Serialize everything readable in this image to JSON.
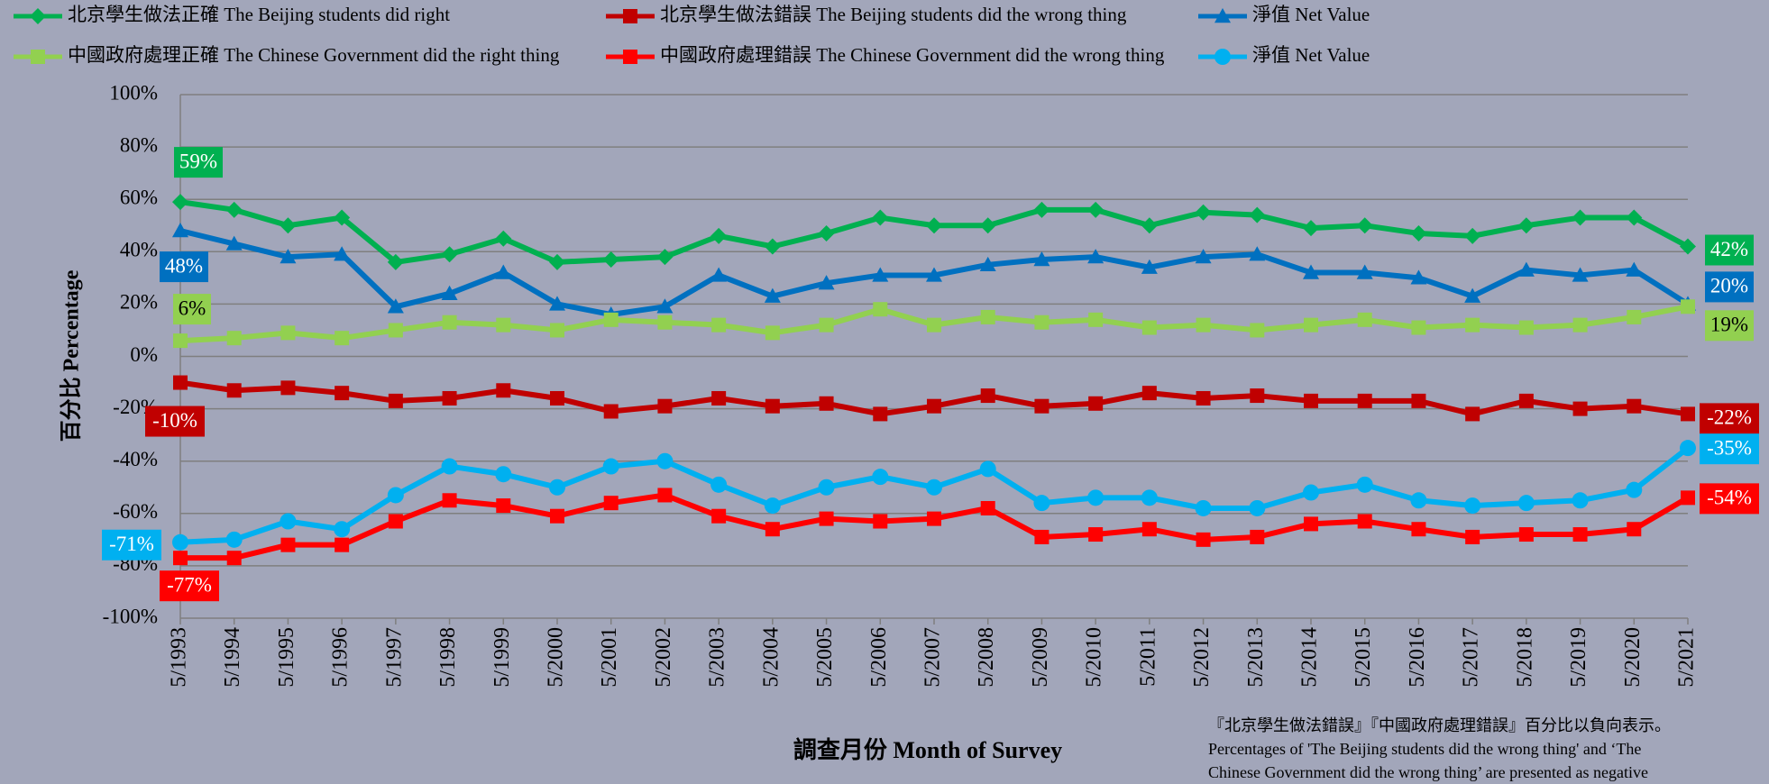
{
  "chart_data": {
    "type": "line",
    "x_label": "調查月份 Month of Survey",
    "y_label": "百分比 Percentage",
    "categories": [
      "5/1993",
      "5/1994",
      "5/1995",
      "5/1996",
      "5/1997",
      "5/1998",
      "5/1999",
      "5/2000",
      "5/2001",
      "5/2002",
      "5/2003",
      "5/2004",
      "5/2005",
      "5/2006",
      "5/2007",
      "5/2008",
      "5/2009",
      "5/2010",
      "5/2011",
      "5/2012",
      "5/2013",
      "5/2014",
      "5/2015",
      "5/2016",
      "5/2017",
      "5/2018",
      "5/2019",
      "5/2020",
      "5/2021"
    ],
    "ylim": [
      -100,
      100
    ],
    "yticks": [
      {
        "value": -100,
        "label": "-100%"
      },
      {
        "value": -80,
        "label": "-80%"
      },
      {
        "value": -60,
        "label": "-60%"
      },
      {
        "value": -40,
        "label": "-40%"
      },
      {
        "value": -20,
        "label": "-20%"
      },
      {
        "value": 0,
        "label": "0%"
      },
      {
        "value": 20,
        "label": "20%"
      },
      {
        "value": 40,
        "label": "40%"
      },
      {
        "value": 60,
        "label": "60%"
      },
      {
        "value": 80,
        "label": "80%"
      },
      {
        "value": 100,
        "label": "100%"
      }
    ],
    "grid": true,
    "series": [
      {
        "name": "北京學生做法正確 The Beijing students did right",
        "color": "#00b050",
        "marker": "diamond",
        "values": [
          59,
          56,
          50,
          53,
          36,
          39,
          45,
          36,
          37,
          38,
          46,
          42,
          47,
          53,
          50,
          50,
          56,
          56,
          50,
          55,
          54,
          49,
          50,
          47,
          46,
          50,
          53,
          53,
          42
        ],
        "value_labels": [
          "59%",
          null,
          null,
          null,
          null,
          null,
          null,
          null,
          null,
          null,
          null,
          null,
          null,
          null,
          null,
          null,
          null,
          null,
          null,
          null,
          null,
          null,
          null,
          null,
          null,
          null,
          null,
          null,
          "42%"
        ]
      },
      {
        "name": "北京學生做法錯誤 The Beijing students did the wrong thing",
        "color": "#c00000",
        "marker": "square",
        "values": [
          -10,
          -13,
          -12,
          -14,
          -17,
          -16,
          -13,
          -16,
          -21,
          -19,
          -16,
          -19,
          -18,
          -22,
          -19,
          -15,
          -19,
          -18,
          -14,
          -16,
          -15,
          -17,
          -17,
          -17,
          -22,
          -17,
          -20,
          -19,
          -22
        ],
        "value_labels": [
          "-10%",
          null,
          null,
          null,
          null,
          null,
          null,
          null,
          null,
          null,
          null,
          null,
          null,
          null,
          null,
          null,
          null,
          null,
          null,
          null,
          null,
          null,
          null,
          null,
          null,
          null,
          null,
          null,
          "-22%"
        ]
      },
      {
        "name": "淨值 Net Value",
        "color": "#0070c0",
        "marker": "triangle",
        "values": [
          48,
          43,
          38,
          39,
          19,
          24,
          32,
          20,
          16,
          19,
          31,
          23,
          28,
          31,
          31,
          35,
          37,
          38,
          34,
          38,
          39,
          32,
          32,
          30,
          23,
          33,
          31,
          33,
          20
        ],
        "value_labels": [
          "48%",
          null,
          null,
          null,
          null,
          null,
          null,
          null,
          null,
          null,
          null,
          null,
          null,
          null,
          null,
          null,
          null,
          null,
          null,
          null,
          null,
          null,
          null,
          null,
          null,
          null,
          null,
          null,
          "20%"
        ]
      },
      {
        "name": "中國政府處理正確 The Chinese Government did the right thing",
        "color": "#92d050",
        "marker": "square",
        "values": [
          6,
          7,
          9,
          7,
          10,
          13,
          12,
          10,
          14,
          13,
          12,
          9,
          12,
          18,
          12,
          15,
          13,
          14,
          11,
          12,
          10,
          12,
          14,
          11,
          12,
          11,
          12,
          15,
          19
        ],
        "value_labels": [
          "6%",
          null,
          null,
          null,
          null,
          null,
          null,
          null,
          null,
          null,
          null,
          null,
          null,
          null,
          null,
          null,
          null,
          null,
          null,
          null,
          null,
          null,
          null,
          null,
          null,
          null,
          null,
          null,
          "19%"
        ]
      },
      {
        "name": "中國政府處理錯誤 The Chinese Government did the wrong thing",
        "color": "#ff0000",
        "marker": "square",
        "values": [
          -77,
          -77,
          -72,
          -72,
          -63,
          -55,
          -57,
          -61,
          -56,
          -53,
          -61,
          -66,
          -62,
          -63,
          -62,
          -58,
          -69,
          -68,
          -66,
          -70,
          -69,
          -64,
          -63,
          -66,
          -69,
          -68,
          -68,
          -66,
          -54
        ],
        "value_labels": [
          "-77%",
          null,
          null,
          null,
          null,
          null,
          null,
          null,
          null,
          null,
          null,
          null,
          null,
          null,
          null,
          null,
          null,
          null,
          null,
          null,
          null,
          null,
          null,
          null,
          null,
          null,
          null,
          null,
          "-54%"
        ]
      },
      {
        "name": "淨值 Net Value",
        "color": "#00b0f0",
        "marker": "circle",
        "values": [
          -71,
          -70,
          -63,
          -66,
          -53,
          -42,
          -45,
          -50,
          -42,
          -40,
          -49,
          -57,
          -50,
          -46,
          -50,
          -43,
          -56,
          -54,
          -54,
          -58,
          -58,
          -52,
          -49,
          -55,
          -57,
          -56,
          -55,
          -51,
          -35
        ],
        "value_labels": [
          "-71%",
          null,
          null,
          null,
          null,
          null,
          null,
          null,
          null,
          null,
          null,
          null,
          null,
          null,
          null,
          null,
          null,
          null,
          null,
          null,
          null,
          null,
          null,
          null,
          null,
          null,
          null,
          null,
          "-35%"
        ]
      }
    ],
    "note": [
      "『北京學生做法錯誤』『中國政府處理錯誤』百分比以負向表示。",
      "Percentages of 'The Beijing students did the wrong thing' and ‘The",
      "Chinese Government did the wrong thing’ are presented as negative"
    ]
  }
}
